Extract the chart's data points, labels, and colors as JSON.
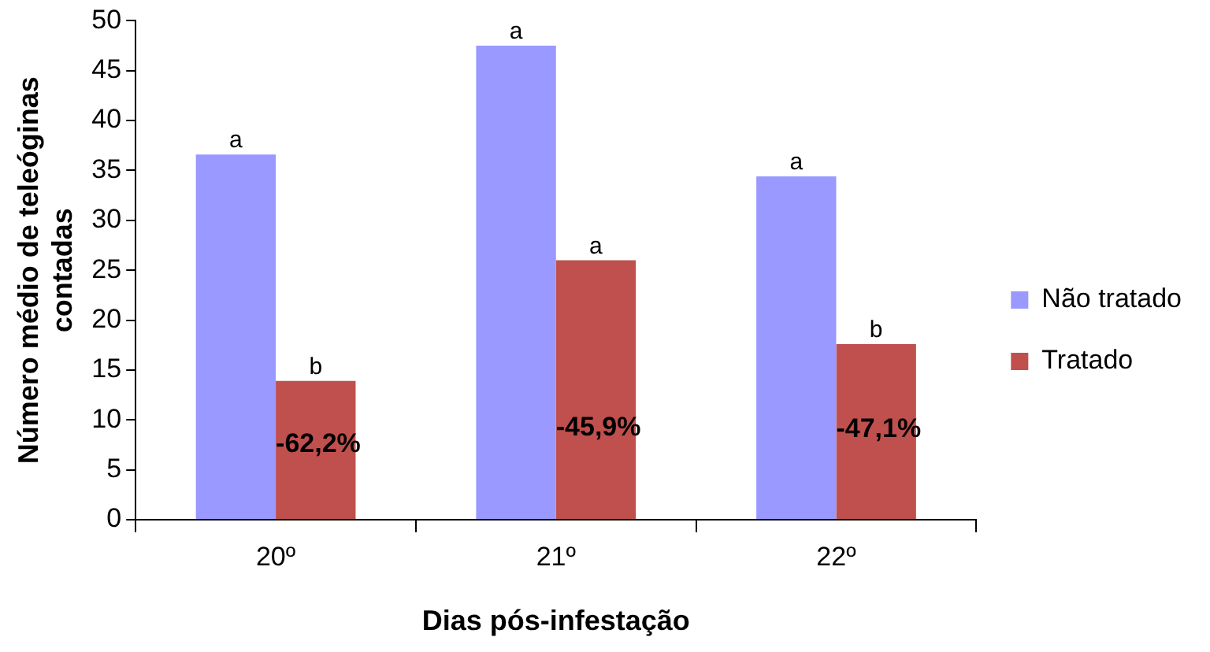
{
  "chart_data": {
    "type": "bar",
    "xlabel": "Dias pós-infestação",
    "ylabel": "Número médio de teleóginas contadas",
    "categories": [
      "20º",
      "21º",
      "22º"
    ],
    "series": [
      {
        "name": "Não tratado",
        "color": "#9999ff",
        "values": [
          36.6,
          47.5,
          34.4
        ],
        "value_labels": [
          "a",
          "a",
          "a"
        ]
      },
      {
        "name": "Tratado",
        "color": "#c0504d",
        "values": [
          13.9,
          26.0,
          17.6
        ],
        "value_labels": [
          "b",
          "a",
          "b"
        ]
      }
    ],
    "annotations": [
      {
        "text": "-62,2%",
        "x": "20º",
        "y": 7.5
      },
      {
        "text": "-45,9%",
        "x": "21º",
        "y": 9.2
      },
      {
        "text": "-47,1%",
        "x": "22º",
        "y": 9
      }
    ],
    "ylim": [
      0,
      50
    ],
    "yticks": [
      0,
      5,
      10,
      15,
      20,
      25,
      30,
      35,
      40,
      45,
      50
    ],
    "grid": false,
    "legend": "right"
  }
}
